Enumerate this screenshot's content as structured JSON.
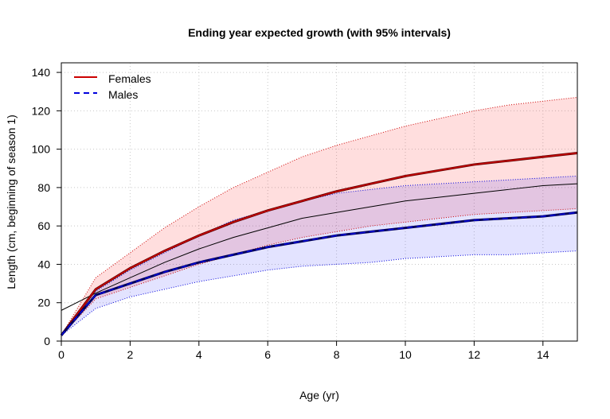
{
  "chart_data": {
    "type": "line",
    "title": "Ending year expected growth (with 95% intervals)",
    "xlabel": "Age (yr)",
    "ylabel": "Length (cm, beginning of season 1)",
    "xlim": [
      0,
      15
    ],
    "ylim": [
      0,
      145
    ],
    "xticks": [
      0,
      2,
      4,
      6,
      8,
      10,
      12,
      14
    ],
    "yticks": [
      0,
      20,
      40,
      60,
      80,
      100,
      120,
      140
    ],
    "grid": true,
    "legend_position": "top-left",
    "x": [
      0,
      1,
      2,
      3,
      4,
      5,
      6,
      7,
      8,
      9,
      10,
      11,
      12,
      13,
      14,
      15
    ],
    "series": [
      {
        "name": "Females",
        "color": "#cc0000",
        "line_style": "solid",
        "band_fill": "rgba(255,0,0,0.13)",
        "values": [
          3,
          27,
          38,
          47,
          55,
          62,
          68,
          73,
          78,
          82,
          86,
          89,
          92,
          94,
          96,
          98
        ],
        "lower": [
          3,
          22,
          28,
          34,
          40,
          45,
          50,
          54,
          57,
          60,
          62,
          64,
          66,
          67,
          68,
          69
        ],
        "upper": [
          3,
          33,
          46,
          59,
          70,
          80,
          88,
          96,
          102,
          107,
          112,
          116,
          120,
          123,
          125,
          127
        ]
      },
      {
        "name": "Males",
        "color": "#0000dd",
        "line_style": "dashed",
        "band_fill": "rgba(0,0,255,0.11)",
        "values": [
          3,
          24,
          30,
          36,
          41,
          45,
          49,
          52,
          55,
          57,
          59,
          61,
          63,
          64,
          65,
          67
        ],
        "lower": [
          3,
          17,
          23,
          27,
          31,
          34,
          37,
          39,
          40,
          41,
          43,
          44,
          45,
          45,
          46,
          47
        ],
        "upper": [
          3,
          26,
          37,
          46,
          55,
          63,
          68,
          73,
          77,
          79,
          81,
          82,
          83,
          84,
          85,
          86
        ]
      }
    ],
    "overall_curve": [
      16,
      25,
      33,
      41,
      48,
      54,
      59,
      64,
      67,
      70,
      73,
      75,
      77,
      79,
      81,
      82
    ],
    "legend": [
      {
        "label": "Females",
        "color": "#cc0000",
        "line_style": "solid"
      },
      {
        "label": "Males",
        "color": "#0000dd",
        "line_style": "dashed"
      }
    ]
  }
}
